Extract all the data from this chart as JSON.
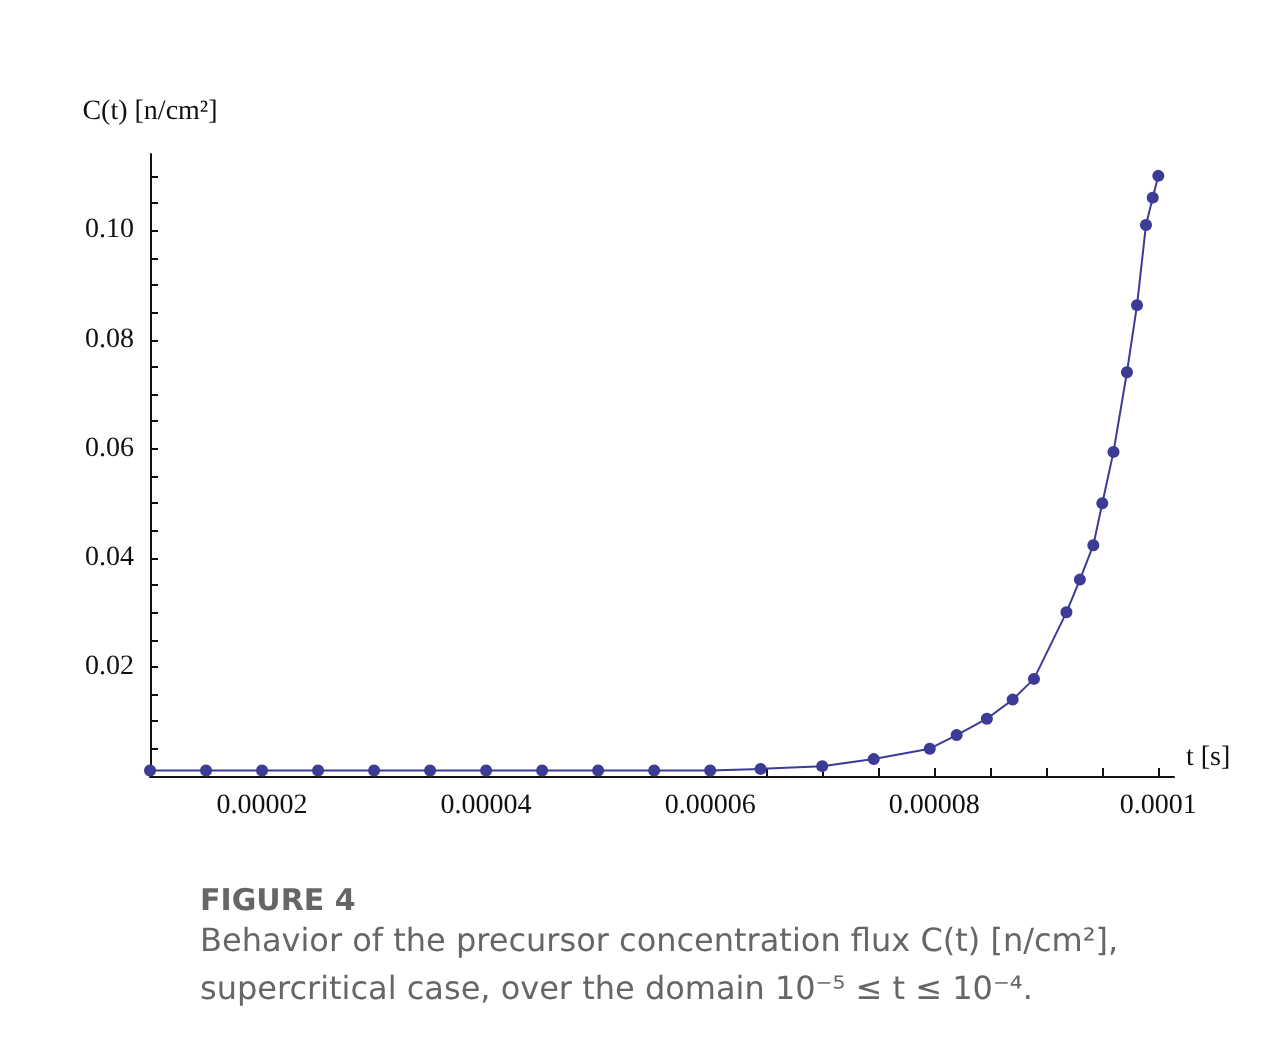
{
  "chart_data": {
    "type": "line",
    "xlabel": "t [s]",
    "ylabel": "C(t) [n/cm²]",
    "annotations": [
      "FIGURE 4",
      "Behavior of the precursor concentration flux C(t) [n/cm²], supercritical case, over the domain 10⁻⁵ ≤ t ≤ 10⁻⁴."
    ],
    "series": [
      {
        "color": "#3c3c96",
        "x": [
          1e-05,
          1.5e-05,
          2e-05,
          2.5e-05,
          3e-05,
          3.5e-05,
          4e-05,
          4.5e-05,
          5e-05,
          5.5e-05,
          6e-05,
          6.45e-05,
          7e-05,
          7.46e-05,
          7.96e-05,
          8.2e-05,
          8.47e-05,
          8.7e-05,
          8.89e-05,
          9.18e-05,
          9.3e-05,
          9.42e-05,
          9.5e-05,
          9.6e-05,
          9.72e-05,
          9.81e-05,
          9.89e-05,
          9.95e-05,
          0.0001
        ],
        "values": [
          0.001,
          0.001,
          0.001,
          0.001,
          0.001,
          0.001,
          0.001,
          0.001,
          0.001,
          0.001,
          0.001,
          0.0013,
          0.0018,
          0.0031,
          0.005,
          0.0075,
          0.0105,
          0.014,
          0.0178,
          0.03,
          0.036,
          0.0423,
          0.05,
          0.0594,
          0.074,
          0.0863,
          0.101,
          0.106,
          0.11
        ]
      }
    ],
    "xlim": [
      1e-05,
      0.0001014
    ],
    "ylim": [
      0,
      0.114
    ],
    "xticks": [
      {
        "value": 1.5e-05,
        "label": null
      },
      {
        "value": 2e-05,
        "label": "0.00002"
      },
      {
        "value": 2.5e-05,
        "label": null
      },
      {
        "value": 3e-05,
        "label": null
      },
      {
        "value": 3.5e-05,
        "label": null
      },
      {
        "value": 4e-05,
        "label": "0.00004"
      },
      {
        "value": 4.5e-05,
        "label": null
      },
      {
        "value": 5e-05,
        "label": null
      },
      {
        "value": 5.5e-05,
        "label": null
      },
      {
        "value": 6e-05,
        "label": "0.00006"
      },
      {
        "value": 6.5e-05,
        "label": null
      },
      {
        "value": 7e-05,
        "label": null
      },
      {
        "value": 7.5e-05,
        "label": null
      },
      {
        "value": 8e-05,
        "label": "0.00008"
      },
      {
        "value": 8.5e-05,
        "label": null
      },
      {
        "value": 9e-05,
        "label": null
      },
      {
        "value": 9.5e-05,
        "label": null
      },
      0.0001
    ],
    "yticks": [
      {
        "value": 0.005,
        "label": null
      },
      {
        "value": 0.01,
        "label": null
      },
      {
        "value": 0.015,
        "label": null
      },
      0.02,
      {
        "value": 0.025,
        "label": null
      },
      {
        "value": 0.03,
        "label": null
      },
      {
        "value": 0.035,
        "label": null
      },
      0.04,
      {
        "value": 0.045,
        "label": null
      },
      {
        "value": 0.05,
        "label": null
      },
      {
        "value": 0.055,
        "label": null
      },
      0.06,
      {
        "value": 0.065,
        "label": null
      },
      {
        "value": 0.07,
        "label": null
      },
      {
        "value": 0.075,
        "label": null
      },
      0.08,
      {
        "value": 0.085,
        "label": null
      },
      {
        "value": 0.09,
        "label": null
      },
      {
        "value": 0.095,
        "label": null
      },
      {
        "value": 0.1,
        "label": "0.10"
      },
      {
        "value": 0.105,
        "label": null
      },
      {
        "value": 0.11,
        "label": null
      }
    ],
    "grid": false,
    "marker": "circle",
    "line_style": "solid"
  }
}
